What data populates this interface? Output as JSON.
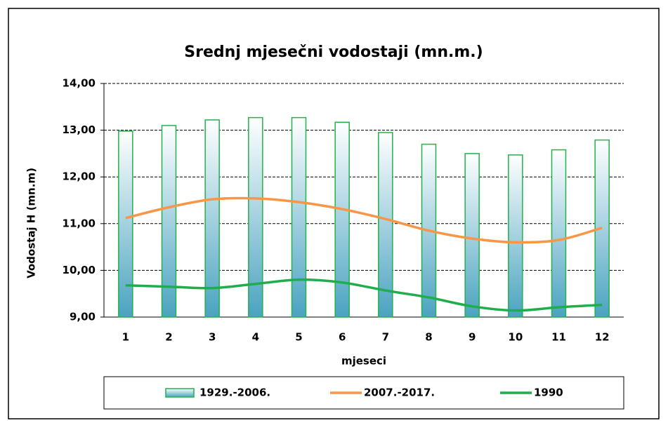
{
  "chart_data": {
    "type": "bar_line",
    "title": "Srednj mjesečni vodostaji (mn.m.)",
    "x_label": "mjeseci",
    "y_label": "Vodostaj H (mn.m)",
    "categories": [
      "1",
      "2",
      "3",
      "4",
      "5",
      "6",
      "7",
      "8",
      "9",
      "10",
      "11",
      "12"
    ],
    "ylim": [
      9,
      14
    ],
    "yticks": [
      {
        "value": 9,
        "label": "9,00"
      },
      {
        "value": 10,
        "label": "10,00"
      },
      {
        "value": 11,
        "label": "11,00"
      },
      {
        "value": 12,
        "label": "12,00"
      },
      {
        "value": 13,
        "label": "13,00"
      },
      {
        "value": 14,
        "label": "14,00"
      }
    ],
    "grid": true,
    "legend": "bottom",
    "series": [
      {
        "name": "1929.-2006.",
        "type": "bar",
        "color": "#22b14c",
        "fill": "#4aa3c0",
        "values": [
          12.98,
          13.1,
          13.22,
          13.27,
          13.27,
          13.17,
          12.95,
          12.7,
          12.5,
          12.47,
          12.58,
          12.79
        ]
      },
      {
        "name": "2007.-2017.",
        "type": "line",
        "color": "#f79646",
        "values": [
          11.12,
          11.35,
          11.52,
          11.54,
          11.46,
          11.31,
          11.1,
          10.85,
          10.68,
          10.6,
          10.65,
          10.91
        ]
      },
      {
        "name": "1990",
        "type": "line",
        "color": "#1fae4b",
        "values": [
          9.68,
          9.65,
          9.62,
          9.71,
          9.8,
          9.74,
          9.57,
          9.42,
          9.23,
          9.14,
          9.21,
          9.26
        ]
      }
    ]
  }
}
